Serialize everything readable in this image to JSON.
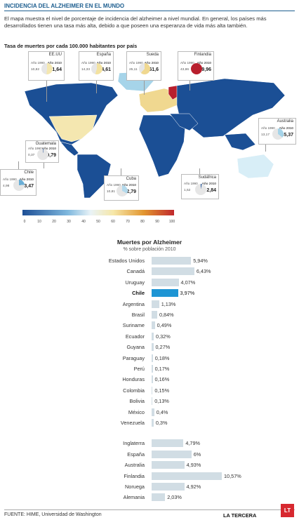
{
  "header": {
    "title": "INCIDENCIA DEL ALZHEIMER EN EL MUNDO",
    "intro": "El mapa muestra el nivel de porcentaje de incidencia del alzheimer a nivel mundial. En general, los países más desarrollados tienen una tasa más alta, debido a que poseen una esperanza de vida más alta también."
  },
  "map": {
    "title": "Tasa de muertes por cada 100.000 habitantes por país",
    "legend_ticks": [
      "0",
      "10",
      "20",
      "30",
      "40",
      "50",
      "60",
      "70",
      "80",
      "90",
      "100"
    ],
    "colors": {
      "low": "#1d4f96",
      "high": "#c0282d",
      "land_default": "#1b4f95",
      "land_light": "#a6d4e9",
      "land_pale": "#d8eef7"
    },
    "callouts": [
      {
        "country": "EE.UU",
        "year1_label": "Año 1990",
        "year1_value": "10,82",
        "year2_label": "Año 2010",
        "year2_value": "51,64"
      },
      {
        "country": "España",
        "year1_label": "Año 1990",
        "year1_value": "14,33",
        "year2_label": "Año 2010",
        "year2_value": "54,61"
      },
      {
        "country": "Sueda",
        "year1_label": "Año 1990",
        "year1_value": "25,11",
        "year2_label": "Año 2010",
        "year2_value": "61,6"
      },
      {
        "country": "Finlandia",
        "year1_label": "Año 1990",
        "year1_value": "43,86",
        "year2_label": "Año 2010",
        "year2_value": "99,96"
      },
      {
        "country": "Australia",
        "year1_label": "Año 1990",
        "year1_value": "13,17",
        "year2_label": "Año 2010",
        "year2_value": "35,37"
      },
      {
        "country": "Guatemala",
        "year1_label": "Año 1990",
        "year1_value": "0,37",
        "year2_label": "Año 2010",
        "year2_value": "0,79"
      },
      {
        "country": "Chile",
        "year1_label": "Año 1990",
        "year1_value": "4,98",
        "year2_label": "Año 2010",
        "year2_value": "23,47"
      },
      {
        "country": "Cuba",
        "year1_label": "Año 1990",
        "year1_value": "10,81",
        "year2_label": "Año 2010",
        "year2_value": "32,79"
      },
      {
        "country": "Sudáfrica",
        "year1_label": "Año 1990",
        "year1_value": "1,52",
        "year2_label": "Año 2010",
        "year2_value": "2,84"
      }
    ]
  },
  "chart_data": {
    "type": "bar",
    "title": "Muertes por Alzheimer",
    "subtitle": "% sobre población 2010",
    "groups": [
      {
        "categories": [
          "Estados Unidos",
          "Canadá",
          "Uruguay",
          "Chile",
          "Argentina",
          "Brasil",
          "Suriname",
          "Ecuador",
          "Guyana",
          "Paraguay",
          "Perú",
          "Honduras",
          "Colombia",
          "Bolivia",
          "México",
          "Venezuela"
        ],
        "values": [
          5.94,
          6.43,
          4.07,
          3.97,
          1.13,
          0.84,
          0.49,
          0.32,
          0.27,
          0.18,
          0.17,
          0.16,
          0.15,
          0.13,
          0.4,
          0.3
        ],
        "labels": [
          "5,94%",
          "6,43%",
          "4,07%",
          "3,97%",
          "1,13%",
          "0,84%",
          "0,49%",
          "0,32%",
          "0,27%",
          "0,18%",
          "0,17%",
          "0,16%",
          "0,15%",
          "0,13%",
          "0,4%",
          "0,3%"
        ],
        "highlight": "Chile"
      },
      {
        "categories": [
          "Inglaterra",
          "España",
          "Australia",
          "Finlandia",
          "Noruega",
          "Alemania"
        ],
        "values": [
          4.79,
          6.0,
          4.93,
          10.57,
          4.92,
          2.03
        ],
        "labels": [
          "4,79%",
          "6%",
          "4,93%",
          "10,57%",
          "4,92%",
          "2,03%"
        ]
      }
    ],
    "xlim": [
      0,
      10.57
    ],
    "colors": {
      "bar": "#d1dde4",
      "highlight": "#1e95d4"
    }
  },
  "footer": {
    "source": "FUENTE: HIME, Universidad de Washington",
    "brand": "LA TERCERA",
    "logo": "LT"
  }
}
